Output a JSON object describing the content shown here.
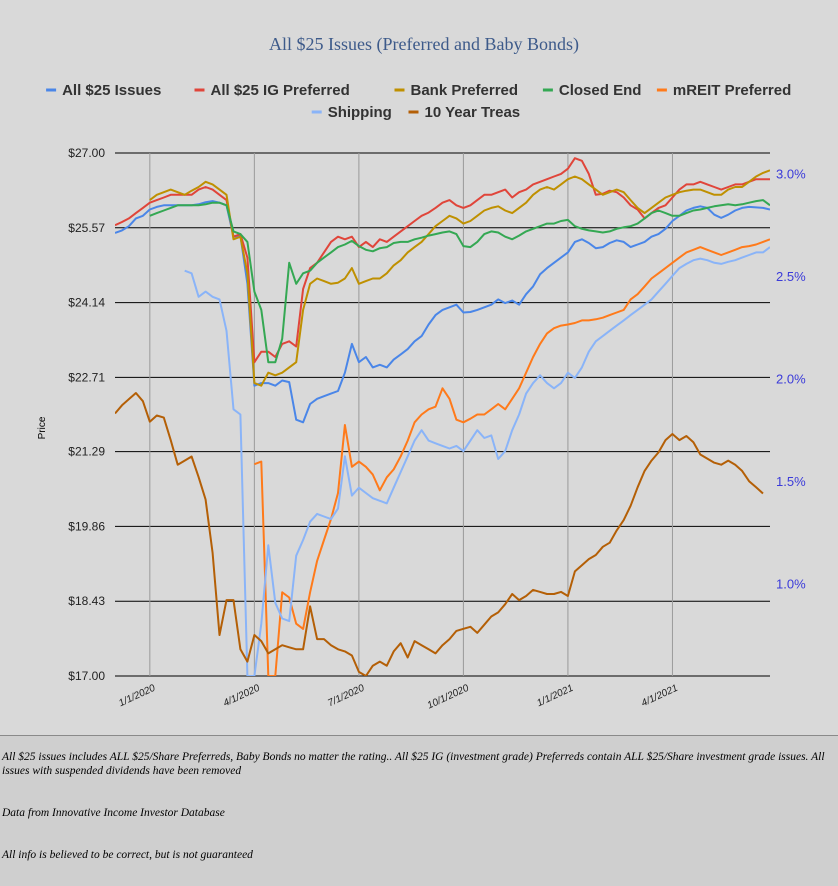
{
  "chart_data": {
    "type": "line",
    "title": "All $25 Issues (Preferred and Baby Bonds)",
    "ylabel": "Price",
    "ylim": [
      17.0,
      27.0
    ],
    "y_ticks": [
      "$27.00",
      "$25.57",
      "$24.14",
      "$22.71",
      "$21.29",
      "$19.86",
      "$18.43",
      "$17.00"
    ],
    "y_tick_values": [
      27.0,
      25.57,
      24.14,
      22.71,
      21.29,
      19.86,
      18.43,
      17.0
    ],
    "y2lim": [
      0.55,
      3.1
    ],
    "y2_ticks": [
      "3.0%",
      "2.5%",
      "2.0%",
      "1.5%",
      "1.0%"
    ],
    "y2_tick_values": [
      3.0,
      2.5,
      2.0,
      1.5,
      1.0
    ],
    "x_range": [
      0,
      94
    ],
    "x_ticks": [
      {
        "label": "1/1/2020",
        "t": 5
      },
      {
        "label": "4/1/2020",
        "t": 20
      },
      {
        "label": "7/1/2020",
        "t": 35
      },
      {
        "label": "10/1/2020",
        "t": 50
      },
      {
        "label": "1/1/2021",
        "t": 65
      },
      {
        "label": "4/1/2021",
        "t": 80
      }
    ],
    "grid": true,
    "legend_position": "top",
    "series": [
      {
        "name": "All $25 Issues",
        "color": "#4a86e8",
        "axis": "left",
        "values": [
          25.47,
          25.52,
          25.6,
          25.75,
          25.8,
          25.92,
          25.97,
          26.0,
          26.0,
          26.0,
          26.0,
          26.0,
          26.02,
          26.06,
          26.08,
          26.05,
          26.0,
          25.4,
          25.42,
          24.5,
          22.55,
          22.6,
          22.6,
          22.55,
          22.65,
          22.62,
          21.9,
          21.85,
          22.2,
          22.3,
          22.35,
          22.4,
          22.45,
          22.8,
          23.35,
          23.0,
          23.1,
          22.9,
          22.95,
          22.9,
          23.05,
          23.15,
          23.25,
          23.4,
          23.5,
          23.72,
          23.9,
          24.0,
          24.05,
          24.1,
          23.95,
          23.96,
          24.0,
          24.05,
          24.1,
          24.2,
          24.13,
          24.18,
          24.1,
          24.3,
          24.45,
          24.68,
          24.8,
          24.9,
          25.0,
          25.1,
          25.3,
          25.35,
          25.28,
          25.18,
          25.2,
          25.28,
          25.33,
          25.3,
          25.2,
          25.25,
          25.3,
          25.4,
          25.45,
          25.55,
          25.7,
          25.8,
          25.9,
          25.95,
          25.98,
          25.95,
          25.82,
          25.76,
          25.82,
          25.9,
          25.95,
          25.97,
          25.96,
          25.95,
          25.92
        ]
      },
      {
        "name": "All $25 IG Preferred",
        "color": "#e0453a",
        "axis": "left",
        "values": [
          25.62,
          25.68,
          25.75,
          25.85,
          25.95,
          26.05,
          26.1,
          26.15,
          26.2,
          26.2,
          26.2,
          26.2,
          26.3,
          26.35,
          26.3,
          26.2,
          26.1,
          25.4,
          25.45,
          25.0,
          23.0,
          23.2,
          23.2,
          23.1,
          23.35,
          23.4,
          23.3,
          24.4,
          24.8,
          24.9,
          25.1,
          25.3,
          25.4,
          25.35,
          25.4,
          25.2,
          25.3,
          25.2,
          25.35,
          25.3,
          25.4,
          25.5,
          25.6,
          25.7,
          25.8,
          25.86,
          25.95,
          26.05,
          26.1,
          26.0,
          25.95,
          26.0,
          26.1,
          26.2,
          26.2,
          26.25,
          26.3,
          26.15,
          26.25,
          26.3,
          26.4,
          26.45,
          26.5,
          26.55,
          26.6,
          26.7,
          26.9,
          26.85,
          26.6,
          26.2,
          26.22,
          26.28,
          26.25,
          26.15,
          26.0,
          25.92,
          25.75,
          25.85,
          25.95,
          26.0,
          26.15,
          26.3,
          26.4,
          26.4,
          26.45,
          26.4,
          26.35,
          26.3,
          26.35,
          26.4,
          26.4,
          26.45,
          26.5,
          26.5,
          26.5
        ]
      },
      {
        "name": "Bank Preferred",
        "color": "#bf9000",
        "axis": "left",
        "values": [
          null,
          null,
          null,
          null,
          null,
          26.1,
          26.2,
          26.25,
          26.3,
          26.25,
          26.2,
          26.28,
          26.35,
          26.45,
          26.4,
          26.3,
          26.2,
          25.35,
          25.4,
          24.7,
          22.6,
          22.55,
          22.8,
          22.75,
          22.8,
          22.9,
          23.0,
          24.0,
          24.5,
          24.6,
          24.55,
          24.5,
          24.52,
          24.6,
          24.8,
          24.5,
          24.55,
          24.6,
          24.6,
          24.7,
          24.85,
          24.95,
          25.1,
          25.2,
          25.3,
          25.45,
          25.6,
          25.7,
          25.8,
          25.75,
          25.65,
          25.7,
          25.8,
          25.9,
          25.95,
          25.98,
          25.9,
          25.85,
          25.95,
          26.05,
          26.2,
          26.3,
          26.35,
          26.3,
          26.4,
          26.5,
          26.55,
          26.5,
          26.4,
          26.3,
          26.2,
          26.25,
          26.3,
          26.25,
          26.1,
          25.95,
          25.85,
          25.95,
          26.05,
          26.15,
          26.2,
          26.25,
          26.28,
          26.3,
          26.3,
          26.25,
          26.2,
          26.2,
          26.3,
          26.35,
          26.35,
          26.45,
          26.55,
          26.62,
          26.67
        ]
      },
      {
        "name": "Closed End",
        "color": "#34a853",
        "axis": "left",
        "values": [
          null,
          null,
          null,
          null,
          null,
          25.8,
          25.85,
          25.9,
          25.95,
          26.0,
          26.0,
          26.0,
          26.0,
          26.02,
          26.05,
          26.05,
          26.0,
          25.5,
          25.45,
          25.3,
          24.35,
          24.0,
          23.0,
          23.0,
          23.45,
          24.9,
          24.5,
          24.7,
          24.75,
          24.9,
          25.0,
          25.1,
          25.2,
          25.25,
          25.32,
          25.22,
          25.15,
          25.12,
          25.18,
          25.2,
          25.28,
          25.3,
          25.3,
          25.35,
          25.38,
          25.42,
          25.45,
          25.48,
          25.5,
          25.45,
          25.22,
          25.2,
          25.3,
          25.45,
          25.5,
          25.48,
          25.4,
          25.35,
          25.42,
          25.5,
          25.55,
          25.6,
          25.65,
          25.65,
          25.7,
          25.72,
          25.6,
          25.55,
          25.52,
          25.5,
          25.48,
          25.5,
          25.55,
          25.58,
          25.6,
          25.65,
          25.75,
          25.85,
          25.9,
          25.85,
          25.8,
          25.8,
          25.85,
          25.9,
          25.92,
          25.95,
          25.98,
          26.0,
          26.02,
          26.0,
          26.02,
          26.05,
          26.08,
          26.1,
          26.0
        ]
      },
      {
        "name": "mREIT Preferred",
        "color": "#ff7a1a",
        "axis": "left",
        "values": [
          null,
          null,
          null,
          null,
          null,
          null,
          null,
          null,
          null,
          null,
          null,
          null,
          null,
          null,
          null,
          null,
          null,
          null,
          null,
          null,
          21.05,
          21.1,
          17.0,
          17.0,
          18.6,
          18.5,
          18.0,
          17.9,
          18.6,
          19.2,
          19.6,
          20.0,
          20.5,
          21.8,
          21.0,
          21.1,
          21.0,
          20.85,
          20.55,
          20.8,
          20.95,
          21.2,
          21.5,
          21.85,
          22.0,
          22.1,
          22.15,
          22.5,
          22.3,
          21.9,
          21.85,
          21.92,
          22.0,
          22.0,
          22.1,
          22.2,
          22.1,
          22.3,
          22.5,
          22.8,
          23.1,
          23.35,
          23.55,
          23.65,
          23.7,
          23.72,
          23.75,
          23.8,
          23.8,
          23.82,
          23.85,
          23.9,
          23.95,
          24.0,
          24.2,
          24.3,
          24.45,
          24.6,
          24.7,
          24.8,
          24.9,
          25.0,
          25.1,
          25.15,
          25.2,
          25.15,
          25.1,
          25.05,
          25.1,
          25.15,
          25.2,
          25.22,
          25.25,
          25.3,
          25.35
        ]
      },
      {
        "name": "Shipping",
        "color": "#8ab4f8",
        "axis": "left",
        "values": [
          null,
          null,
          null,
          null,
          null,
          null,
          null,
          null,
          null,
          null,
          24.75,
          24.7,
          24.25,
          24.35,
          24.25,
          24.2,
          23.6,
          22.1,
          22.0,
          17.0,
          17.0,
          18.0,
          19.5,
          18.4,
          18.1,
          18.05,
          19.3,
          19.6,
          19.95,
          20.1,
          20.05,
          20.0,
          20.2,
          21.2,
          20.45,
          20.6,
          20.5,
          20.4,
          20.35,
          20.3,
          20.6,
          20.9,
          21.2,
          21.5,
          21.7,
          21.5,
          21.45,
          21.4,
          21.35,
          21.4,
          21.3,
          21.5,
          21.7,
          21.55,
          21.6,
          21.15,
          21.3,
          21.7,
          22.0,
          22.4,
          22.6,
          22.75,
          22.6,
          22.5,
          22.6,
          22.8,
          22.7,
          22.9,
          23.2,
          23.4,
          23.5,
          23.6,
          23.7,
          23.8,
          23.9,
          24.0,
          24.1,
          24.2,
          24.35,
          24.5,
          24.65,
          24.8,
          24.88,
          24.95,
          24.98,
          24.95,
          24.9,
          24.88,
          24.92,
          24.95,
          25.0,
          25.05,
          25.1,
          25.1,
          25.2
        ]
      },
      {
        "name": "10 Year Treas",
        "color": "#b45f06",
        "axis": "right",
        "values": [
          1.83,
          1.87,
          1.9,
          1.93,
          1.89,
          1.79,
          1.82,
          1.81,
          1.7,
          1.58,
          1.6,
          1.62,
          1.52,
          1.41,
          1.15,
          0.75,
          0.92,
          0.92,
          0.68,
          0.62,
          0.75,
          0.72,
          0.66,
          0.68,
          0.7,
          0.69,
          0.68,
          0.68,
          0.89,
          0.73,
          0.73,
          0.7,
          0.68,
          0.67,
          0.65,
          0.57,
          0.55,
          0.6,
          0.62,
          0.6,
          0.67,
          0.71,
          0.64,
          0.72,
          0.7,
          0.68,
          0.66,
          0.7,
          0.73,
          0.77,
          0.78,
          0.79,
          0.76,
          0.8,
          0.84,
          0.86,
          0.9,
          0.95,
          0.92,
          0.94,
          0.97,
          0.96,
          0.95,
          0.95,
          0.96,
          0.94,
          1.06,
          1.09,
          1.12,
          1.14,
          1.18,
          1.2,
          1.26,
          1.31,
          1.38,
          1.47,
          1.55,
          1.6,
          1.64,
          1.7,
          1.73,
          1.7,
          1.72,
          1.69,
          1.63,
          1.61,
          1.59,
          1.58,
          1.6,
          1.58,
          1.55,
          1.5,
          1.47,
          1.44
        ]
      }
    ]
  },
  "notes": {
    "line1": "All $25 issues includes ALL $25/Share Preferreds, Baby Bonds no matter the rating..  All $25 IG (investment grade) Preferreds contain ALL $25/Share investment grade issues.  All issues with suspended dividends have been removed",
    "line2": "Data from Innovative Income Investor Database",
    "line3": "All info is believed to be correct, but is not guaranteed"
  }
}
